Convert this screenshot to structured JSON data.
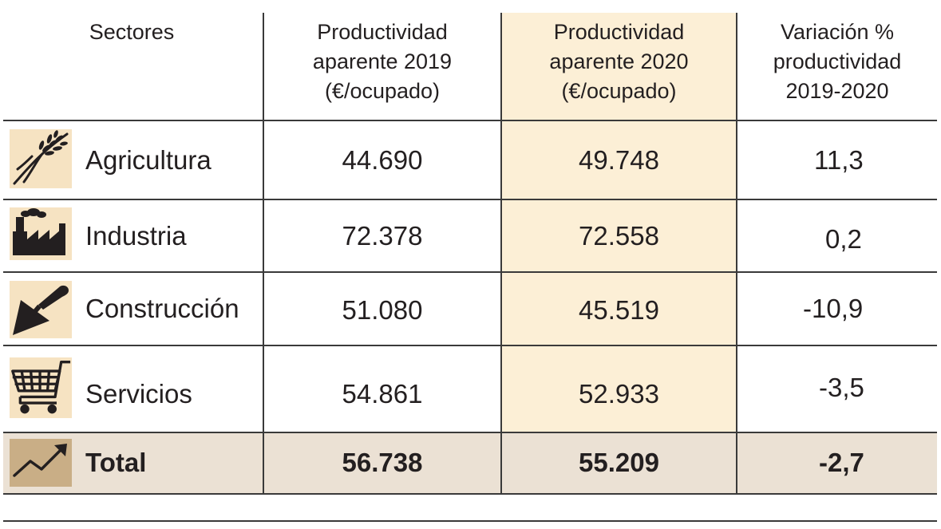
{
  "chart_data": {
    "type": "table",
    "columns": [
      "Sectores",
      "Productividad aparente 2019 (€/ocupado)",
      "Productividad aparente 2020 (€/ocupado)",
      "Variación % productividad 2019-2020"
    ],
    "header": {
      "sectores": "Sectores",
      "col2019": [
        "Productividad",
        "aparente 2019",
        "(€/ocupado)"
      ],
      "col2020": [
        "Productividad",
        "aparente 2020",
        "(€/ocupado)"
      ],
      "colvar": [
        "Variación %",
        "productividad",
        "2019-2020"
      ]
    },
    "rows": [
      {
        "sector": "Agricultura",
        "icon": "wheat-icon",
        "p2019": "44.690",
        "p2020": "49.748",
        "var": "11,3"
      },
      {
        "sector": "Industria",
        "icon": "factory-icon",
        "p2019": "72.378",
        "p2020": "72.558",
        "var": "0,2"
      },
      {
        "sector": "Construcción",
        "icon": "trowel-icon",
        "p2019": "51.080",
        "p2020": "45.519",
        "var": "-10,9"
      },
      {
        "sector": "Servicios",
        "icon": "shopping-cart-icon",
        "p2019": "54.861",
        "p2020": "52.933",
        "var": "-3,5"
      }
    ],
    "total": {
      "sector": "Total",
      "icon": "trend-up-icon",
      "p2019": "56.738",
      "p2020": "55.209",
      "var": "-2,7"
    },
    "colors": {
      "highlight": "#fcefd6",
      "total_row": "#ebe1d4",
      "icon_bg": "#f6e3c2",
      "total_icon_bg": "#c9ae86",
      "ink": "#231f20"
    }
  }
}
